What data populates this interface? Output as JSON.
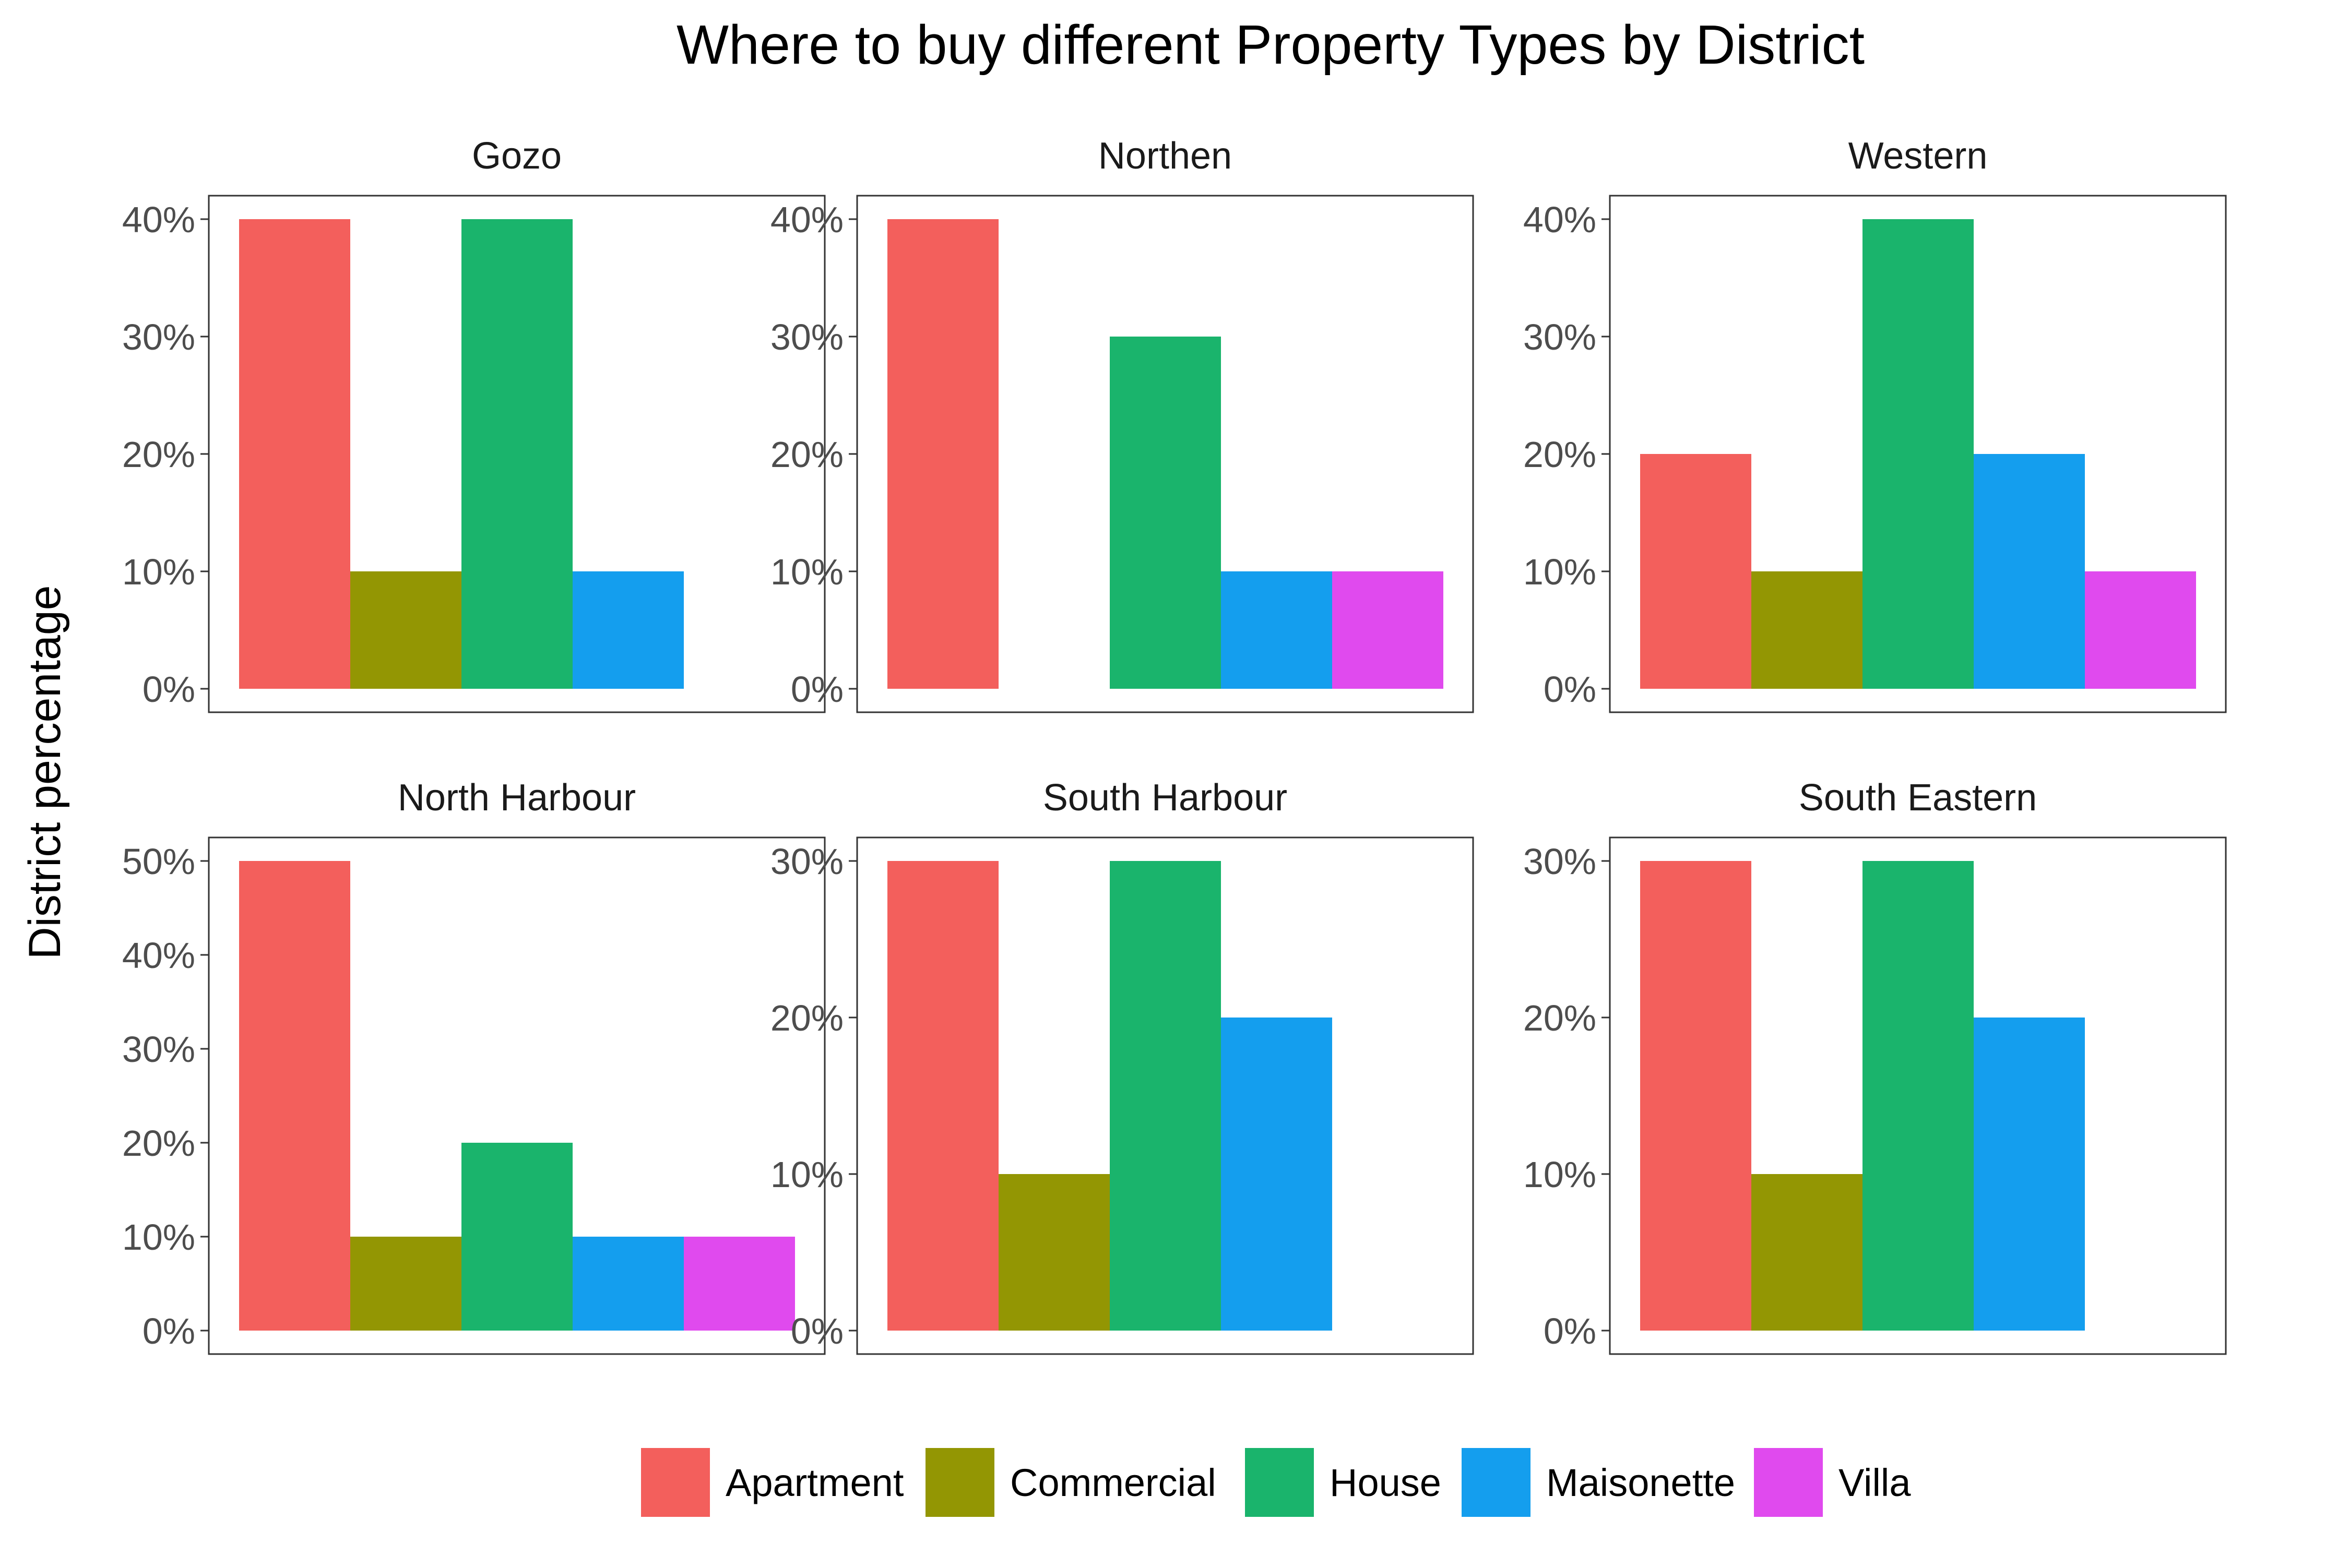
{
  "chart_data": {
    "type": "bar",
    "title": "Where to buy different Property Types by District",
    "ylabel": "District percentage",
    "xlabel": "",
    "categories": [
      "Apartment",
      "Commercial",
      "House",
      "Maisonette",
      "Villa"
    ],
    "colors": {
      "Apartment": "#F8766D",
      "Commercial": "#A3A500",
      "House": "#00BA38",
      "Maisonette": "#00BFC4",
      "Villa": "#E76BF3"
    },
    "bar_colors": [
      "#F35F5C",
      "#939603",
      "#1AB46C",
      "#149EEE",
      "#E04AEE"
    ],
    "legend": {
      "position": "bottom",
      "entries": [
        "Apartment",
        "Commercial",
        "House",
        "Maisonette",
        "Villa"
      ]
    },
    "grid": false,
    "panels": [
      {
        "name": "Gozo",
        "ylim": [
          0,
          40
        ],
        "yticks": [
          0,
          10,
          20,
          30,
          40
        ],
        "ytick_labels": [
          "0%",
          "10%",
          "20%",
          "30%",
          "40%"
        ],
        "values": [
          40,
          10,
          40,
          10,
          null
        ]
      },
      {
        "name": "Northen",
        "ylim": [
          0,
          40
        ],
        "yticks": [
          0,
          10,
          20,
          30,
          40
        ],
        "ytick_labels": [
          "0%",
          "10%",
          "20%",
          "30%",
          "40%"
        ],
        "values": [
          40,
          null,
          30,
          10,
          10
        ]
      },
      {
        "name": "Western",
        "ylim": [
          0,
          40
        ],
        "yticks": [
          0,
          10,
          20,
          30,
          40
        ],
        "ytick_labels": [
          "0%",
          "10%",
          "20%",
          "30%",
          "40%"
        ],
        "values": [
          20,
          10,
          40,
          20,
          10
        ]
      },
      {
        "name": "North Harbour",
        "ylim": [
          0,
          50
        ],
        "yticks": [
          0,
          10,
          20,
          30,
          40,
          50
        ],
        "ytick_labels": [
          "0%",
          "10%",
          "20%",
          "30%",
          "40%",
          "50%"
        ],
        "values": [
          50,
          10,
          20,
          10,
          10
        ]
      },
      {
        "name": "South Harbour",
        "ylim": [
          0,
          30
        ],
        "yticks": [
          0,
          10,
          20,
          30
        ],
        "ytick_labels": [
          "0%",
          "10%",
          "20%",
          "30%"
        ],
        "values": [
          30,
          10,
          30,
          20,
          null
        ]
      },
      {
        "name": "South Eastern",
        "ylim": [
          0,
          30
        ],
        "yticks": [
          0,
          10,
          20,
          30
        ],
        "ytick_labels": [
          "0%",
          "10%",
          "20%",
          "30%"
        ],
        "values": [
          30,
          10,
          30,
          20,
          null
        ]
      }
    ]
  }
}
